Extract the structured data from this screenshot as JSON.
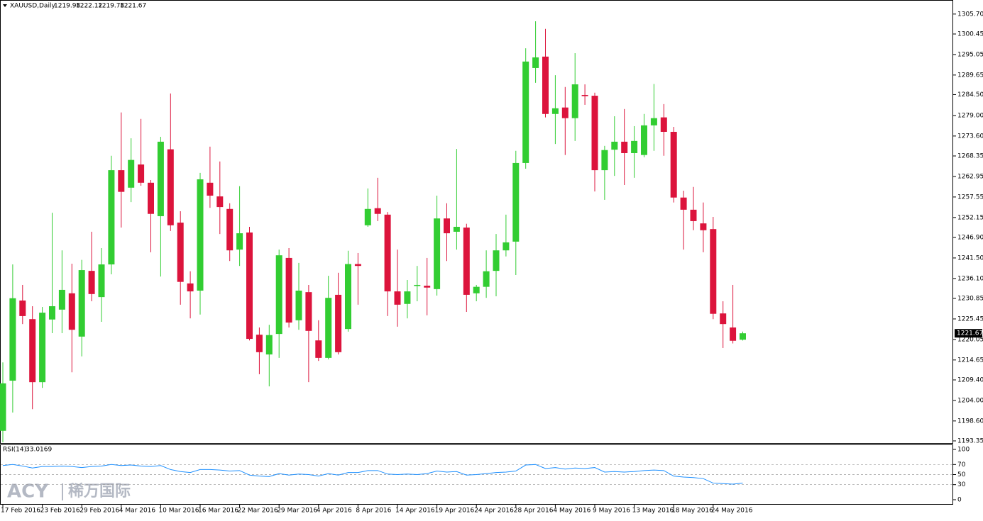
{
  "chart_data": [
    {
      "type": "candlestick",
      "title": "XAUUSD,Daily",
      "categories": [
        "17 Feb 2016",
        null,
        null,
        null,
        "23 Feb 2016",
        null,
        null,
        null,
        "29 Feb 2016",
        null,
        null,
        null,
        "4 Mar 2016",
        null,
        null,
        null,
        "10 Mar 2016",
        null,
        null,
        null,
        "16 Mar 2016",
        null,
        null,
        null,
        "22 Mar 2016",
        null,
        null,
        null,
        "29 Mar 2016",
        null,
        null,
        null,
        "4 Apr 2016",
        null,
        null,
        null,
        "8 Apr 2016",
        null,
        null,
        null,
        "14 Apr 2016",
        null,
        null,
        null,
        "19 Apr 2016",
        null,
        null,
        null,
        "24 Apr 2016",
        null,
        null,
        null,
        "28 Apr 2016",
        null,
        null,
        null,
        "4 May 2016",
        null,
        null,
        null,
        "9 May 2016",
        null,
        null,
        null,
        "13 May 2016",
        null,
        null,
        null,
        "18 May 2016",
        null,
        null,
        null,
        "24 May 2016",
        null,
        null,
        null
      ],
      "open": [
        1196,
        1209.2,
        1230.3,
        1225.4,
        1208.8,
        1225.3,
        1227.9,
        1232.2,
        1220.8,
        1238.1,
        1231.2,
        1239.8,
        1264.6,
        1260,
        1266.1,
        1261.3,
        1252.5,
        1270.1,
        1250.8,
        1234.8,
        1232.9,
        1261.3,
        1257.7,
        1254.4,
        1243.7,
        1248.2,
        1221.3,
        1216.1,
        1221.5,
        1241.5,
        1225.1,
        1232.5,
        1219.8,
        1215.2,
        1231.8,
        1222.8,
        1239.9,
        1250.1,
        1254.6,
        1252.9,
        1232.7,
        1229.4,
        1234.2,
        1234.2,
        1233.3,
        1251.9,
        1248.4,
        1249.5,
        1232.2,
        1233.9,
        1238.1,
        1243.5,
        1245.8,
        1266.5,
        1291.5,
        1294.5,
        1279.4,
        1281.1,
        1278.3,
        1284.4,
        1284.2,
        1264.6,
        1270.0,
        1272.1,
        1269.1,
        1268.6,
        1276.4,
        1278.5,
        1274.7,
        1257.4,
        1254.2,
        1250.6,
        1249.1,
        1226.9,
        1223.2,
        1219.98
      ],
      "high": [
        1214,
        1239.8,
        1234.4,
        1228.8,
        1228.6,
        1253.4,
        1243.5,
        1240.0,
        1241.0,
        1248.4,
        1244.1,
        1268.4,
        1279.8,
        1273.0,
        1278.1,
        1262.0,
        1273.4,
        1284.8,
        1253.8,
        1238.0,
        1263.9,
        1270.8,
        1266.9,
        1255.9,
        1260.4,
        1249.7,
        1223.2,
        1223.9,
        1243.7,
        1244.1,
        1240.2,
        1234.4,
        1225.1,
        1236.8,
        1237.6,
        1243.4,
        1242.8,
        1259.8,
        1262.6,
        1253.6,
        1243.7,
        1235.7,
        1239.4,
        1241.5,
        1257.9,
        1255.9,
        1270.2,
        1250.5,
        1234.4,
        1243.5,
        1247.8,
        1252.9,
        1269.7,
        1296.7,
        1303.8,
        1301.8,
        1289.6,
        1286.5,
        1295.4,
        1287.2,
        1285.0,
        1271.0,
        1278.8,
        1280.7,
        1276.2,
        1279.4,
        1287.3,
        1282.0,
        1276.0,
        1259.2,
        1260.2,
        1256.1,
        1252.3,
        1230.1,
        1234.4,
        1222.12
      ],
      "low": [
        1193,
        1200.8,
        1224.1,
        1201.7,
        1207.3,
        1221.7,
        1221.7,
        1211.4,
        1215.6,
        1230.1,
        1224.7,
        1237.2,
        1249.5,
        1256.2,
        1260.5,
        1243.0,
        1236.6,
        1248.6,
        1229.2,
        1225.6,
        1226.6,
        1254.7,
        1247.8,
        1240.7,
        1239.4,
        1219.8,
        1210.9,
        1207.7,
        1215.2,
        1223.2,
        1222.6,
        1208.8,
        1214.4,
        1214.8,
        1216.1,
        1222.1,
        1229.2,
        1249.7,
        1251.2,
        1226.2,
        1223.4,
        1225.6,
        1230.1,
        1226.4,
        1231.6,
        1240.7,
        1243.7,
        1227.3,
        1230.1,
        1231.0,
        1231.4,
        1241.9,
        1237.0,
        1265.0,
        1287.6,
        1278.5,
        1271.5,
        1268.6,
        1272.3,
        1281.8,
        1259.0,
        1256.8,
        1263.1,
        1260.7,
        1262.6,
        1268.0,
        1269.7,
        1268.4,
        1256.1,
        1243.7,
        1248.8,
        1243.0,
        1225.4,
        1217.8,
        1219.0,
        1219.78
      ],
      "close": [
        1208.5,
        1230.9,
        1226.2,
        1208.8,
        1227.1,
        1228.8,
        1233.1,
        1222.6,
        1238.3,
        1232.0,
        1239.8,
        1264.6,
        1258.9,
        1267.3,
        1261.3,
        1253.1,
        1272.1,
        1250.1,
        1235.2,
        1232.7,
        1262.2,
        1257.9,
        1254.9,
        1243.5,
        1248.0,
        1220.2,
        1216.7,
        1221.2,
        1242.2,
        1224.5,
        1232.9,
        1222.3,
        1215.2,
        1231.0,
        1216.7,
        1239.9,
        1239.4,
        1254.4,
        1253.1,
        1232.7,
        1229.2,
        1232.7,
        1234.4,
        1233.7,
        1251.9,
        1248.0,
        1249.7,
        1231.8,
        1233.9,
        1238.0,
        1243.5,
        1245.6,
        1266.5,
        1293.2,
        1294.3,
        1279.4,
        1280.9,
        1278.3,
        1287.2,
        1284.1,
        1264.6,
        1269.9,
        1272.1,
        1269.1,
        1272.3,
        1276.4,
        1278.3,
        1274.7,
        1257.4,
        1254.2,
        1251.2,
        1248.8,
        1226.8,
        1224.1,
        1219.7,
        1221.67
      ],
      "up_color": "#32cd32",
      "down_color": "#dc143c",
      "ylim": [
        1192.6,
        1309.4
      ],
      "yticks": [
        {
          "value": 1305.7,
          "label": "1305.70"
        },
        1300.45,
        1295.05,
        1289.65,
        {
          "value": 1284.5,
          "label": "1284.50"
        },
        {
          "value": 1279,
          "label": "1279.00"
        },
        {
          "value": 1273.6,
          "label": "1273.60"
        },
        1268.35,
        1262.95,
        1257.55,
        1252.15,
        {
          "value": 1246.9,
          "label": "1246.90"
        },
        {
          "value": 1241.5,
          "label": "1241.50"
        },
        {
          "value": 1236.1,
          "label": "1236.10"
        },
        1230.85,
        1225.45,
        1220.05,
        1214.65,
        {
          "value": 1209.4,
          "label": "1209.40"
        },
        {
          "value": 1204,
          "label": "1204.00"
        },
        {
          "value": 1198.6,
          "label": "1198.60"
        },
        1193.35
      ]
    },
    {
      "type": "line",
      "title": "RSI(14)",
      "color": "#1e90ff",
      "values": [
        68,
        70,
        67,
        63,
        66,
        66,
        67,
        66,
        64,
        66,
        67,
        70,
        68,
        69,
        67,
        66,
        68,
        60,
        56,
        54,
        60,
        60,
        59,
        57,
        58,
        49,
        47,
        46,
        52,
        49,
        51,
        50,
        47,
        52,
        49,
        54,
        54,
        58,
        58,
        51,
        50,
        51,
        50,
        52,
        57,
        55,
        56,
        49,
        50,
        52,
        54,
        55,
        57,
        69,
        70,
        62,
        64,
        61,
        63,
        62,
        64,
        55,
        56,
        55,
        56,
        58,
        59,
        58,
        47,
        45,
        44,
        42,
        33,
        32,
        31,
        33.0169
      ],
      "ylim": [
        -9.9,
        108.5
      ],
      "yticks": [
        100,
        70,
        50,
        30,
        0
      ],
      "levels": [
        70,
        50,
        30
      ]
    }
  ],
  "watermark": {
    "brand": "ACY",
    "name": "稀万国际"
  }
}
